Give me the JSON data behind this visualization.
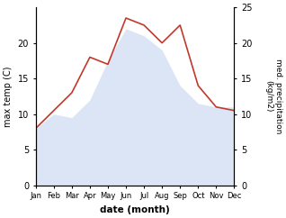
{
  "months": [
    "Jan",
    "Feb",
    "Mar",
    "Apr",
    "May",
    "Jun",
    "Jul",
    "Aug",
    "Sep",
    "Oct",
    "Nov",
    "Dec"
  ],
  "month_positions": [
    1,
    2,
    3,
    4,
    5,
    6,
    7,
    8,
    9,
    10,
    11,
    12
  ],
  "temp": [
    8.0,
    10.5,
    13.0,
    18.0,
    17.0,
    23.5,
    22.5,
    20.0,
    22.5,
    14.0,
    11.0,
    10.5
  ],
  "precip": [
    8.0,
    10.0,
    9.5,
    12.0,
    17.5,
    22.0,
    21.0,
    19.0,
    14.0,
    11.5,
    11.0,
    11.0
  ],
  "temp_color": "#c0392b",
  "precip_color": "#c5d5f0",
  "xlim": [
    1,
    12
  ],
  "ylim_left": [
    0,
    25
  ],
  "ylim_right": [
    0,
    25
  ],
  "ylabel_left": "max temp (C)",
  "ylabel_right": "med. precipitation\n(kg/m2)",
  "xlabel": "date (month)",
  "left_ticks": [
    0,
    5,
    10,
    15,
    20
  ],
  "right_ticks": [
    0,
    5,
    10,
    15,
    20,
    25
  ],
  "left_tick_labels": [
    "0",
    "5",
    "10",
    "15",
    "20"
  ],
  "right_tick_labels": [
    "0",
    "5",
    "10",
    "15",
    "20",
    "25"
  ],
  "fig_width": 3.18,
  "fig_height": 2.42,
  "dpi": 100
}
